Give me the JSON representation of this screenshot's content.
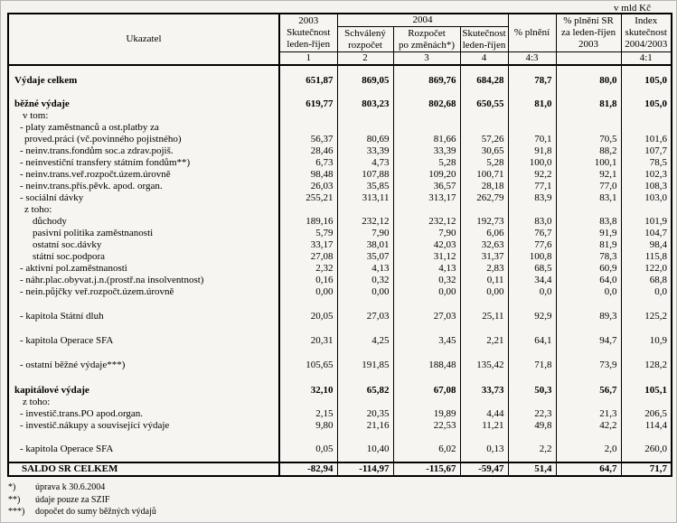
{
  "unit_label": "v mld Kč",
  "header": {
    "indicator": "Ukazatel",
    "col_2003": {
      "year": "2003",
      "line2": "Skutečnost",
      "line3": "leden-říjen",
      "num": "1"
    },
    "group_2004": {
      "year": "2004",
      "sub": [
        {
          "line1": "Schválený",
          "line2": "rozpočet",
          "num": "2"
        },
        {
          "line1": "Rozpočet",
          "line2": "po změnách*)",
          "num": "3"
        },
        {
          "line1": "Skutečnost",
          "line2": "leden-říjen",
          "num": "4"
        }
      ]
    },
    "col_plneni": {
      "label": "% plnění",
      "num": "4:3"
    },
    "col_plneni_sr": {
      "line1": "% plnění SR",
      "line2": "za leden-říjen",
      "line3": "2003",
      "num": ""
    },
    "col_index": {
      "line1": "Index",
      "line2": "skutečnost",
      "line3": "2004/2003",
      "num": "4:1"
    }
  },
  "table": {
    "rows": [
      {
        "type": "spacer",
        "h": 10
      },
      {
        "type": "row",
        "label": "Výdaje celkem",
        "bold": true,
        "indent": 0,
        "values": [
          "651,87",
          "869,05",
          "869,76",
          "684,28",
          "78,7",
          "80,0",
          "105,0"
        ]
      },
      {
        "type": "spacer",
        "h": 12
      },
      {
        "type": "row",
        "label": "běžné výdaje",
        "bold": true,
        "indent": 0,
        "values": [
          "619,77",
          "803,23",
          "802,68",
          "650,55",
          "81,0",
          "81,8",
          "105,0"
        ]
      },
      {
        "type": "row",
        "label": "v tom:",
        "indent": 2,
        "values": []
      },
      {
        "type": "row",
        "label": "- platy zaměstnanců a ost.platby za",
        "indent": 1,
        "values": []
      },
      {
        "type": "row",
        "label": "proved.práci (vč.povinného pojistného)",
        "indent": 3,
        "values": [
          "56,37",
          "80,69",
          "81,66",
          "57,26",
          "70,1",
          "70,5",
          "101,6"
        ]
      },
      {
        "type": "row",
        "label": "- neinv.trans.fondům soc.a zdrav.pojiš.",
        "indent": 1,
        "values": [
          "28,46",
          "33,39",
          "33,39",
          "30,65",
          "91,8",
          "88,2",
          "107,7"
        ]
      },
      {
        "type": "row",
        "label": "- neinvestiční transfery státním fondům**)",
        "indent": 1,
        "values": [
          "6,73",
          "4,73",
          "5,28",
          "5,28",
          "100,0",
          "100,1",
          "78,5"
        ]
      },
      {
        "type": "row",
        "label": "- neinv.trans.veř.rozpočt.územ.úrovně",
        "indent": 1,
        "values": [
          "98,48",
          "107,88",
          "109,20",
          "100,71",
          "92,2",
          "92,1",
          "102,3"
        ]
      },
      {
        "type": "row",
        "label": "- neinv.trans.přís.pěvk. apod. organ.",
        "indent": 1,
        "values": [
          "26,03",
          "35,85",
          "36,57",
          "28,18",
          "77,1",
          "77,0",
          "108,3"
        ]
      },
      {
        "type": "row",
        "label": "- sociální dávky",
        "indent": 1,
        "values": [
          "255,21",
          "313,11",
          "313,17",
          "262,79",
          "83,9",
          "83,1",
          "103,0"
        ]
      },
      {
        "type": "row",
        "label": "z toho:",
        "indent": 3,
        "values": []
      },
      {
        "type": "row",
        "label": "důchody",
        "indent": 4,
        "values": [
          "189,16",
          "232,12",
          "232,12",
          "192,73",
          "83,0",
          "83,8",
          "101,9"
        ]
      },
      {
        "type": "row",
        "label": "pasivní politika zaměstnanosti",
        "indent": 4,
        "values": [
          "5,79",
          "7,90",
          "7,90",
          "6,06",
          "76,7",
          "91,9",
          "104,7"
        ]
      },
      {
        "type": "row",
        "label": "ostatní soc.dávky",
        "indent": 4,
        "values": [
          "33,17",
          "38,01",
          "42,03",
          "32,63",
          "77,6",
          "81,9",
          "98,4"
        ]
      },
      {
        "type": "row",
        "label": "státní soc.podpora",
        "indent": 4,
        "values": [
          "27,08",
          "35,07",
          "31,12",
          "31,37",
          "100,8",
          "78,3",
          "115,8"
        ]
      },
      {
        "type": "row",
        "label": "- aktivní pol.zaměstnanosti",
        "indent": 1,
        "values": [
          "2,32",
          "4,13",
          "4,13",
          "2,83",
          "68,5",
          "60,9",
          "122,0"
        ]
      },
      {
        "type": "row",
        "label": "- náhr.plac.obyvat.j.n.(prostř.na insolventnost)",
        "indent": 1,
        "values": [
          "0,16",
          "0,32",
          "0,32",
          "0,11",
          "34,4",
          "64,0",
          "68,8"
        ]
      },
      {
        "type": "row",
        "label": "- nein.půjčky veř.rozpočt.územ.úrovně",
        "indent": 1,
        "values": [
          "0,00",
          "0,00",
          "0,00",
          "0,00",
          "0,0",
          "0,0",
          "0,0"
        ]
      },
      {
        "type": "spacer",
        "h": 14
      },
      {
        "type": "row",
        "label": "- kapitola Státní dluh",
        "indent": 1,
        "values": [
          "20,05",
          "27,03",
          "27,03",
          "25,11",
          "92,9",
          "89,3",
          "125,2"
        ]
      },
      {
        "type": "spacer",
        "h": 14
      },
      {
        "type": "row",
        "label": "- kapitola Operace SFA",
        "indent": 1,
        "values": [
          "20,31",
          "4,25",
          "3,45",
          "2,21",
          "64,1",
          "94,7",
          "10,9"
        ]
      },
      {
        "type": "spacer",
        "h": 14
      },
      {
        "type": "row",
        "label": "- ostatní běžné výdaje***)",
        "indent": 1,
        "values": [
          "105,65",
          "191,85",
          "188,48",
          "135,42",
          "71,8",
          "73,9",
          "128,2"
        ]
      },
      {
        "type": "spacer",
        "h": 14
      },
      {
        "type": "row",
        "label": "kapitálové výdaje",
        "bold": true,
        "indent": 0,
        "values": [
          "32,10",
          "65,82",
          "67,08",
          "33,73",
          "50,3",
          "56,7",
          "105,1"
        ]
      },
      {
        "type": "row",
        "label": "z toho:",
        "indent": 2,
        "values": []
      },
      {
        "type": "row",
        "label": "- investič.trans.PO apod.organ.",
        "indent": 1,
        "values": [
          "2,15",
          "20,35",
          "19,89",
          "4,44",
          "22,3",
          "21,3",
          "206,5"
        ]
      },
      {
        "type": "row",
        "label": "- investič.nákupy a související výdaje",
        "indent": 1,
        "values": [
          "9,80",
          "21,16",
          "22,53",
          "11,21",
          "49,8",
          "42,2",
          "114,4"
        ]
      },
      {
        "type": "spacer",
        "h": 13
      },
      {
        "type": "row",
        "label": "- kapitola Operace SFA",
        "indent": 1,
        "values": [
          "0,05",
          "10,40",
          "6,02",
          "0,13",
          "2,2",
          "2,0",
          "260,0"
        ]
      },
      {
        "type": "spacer",
        "h": 8
      }
    ],
    "saldo": {
      "label": "SALDO SR CELKEM",
      "values": [
        "-82,94",
        "-114,97",
        "-115,67",
        "-59,47",
        "51,4",
        "64,7",
        "71,7"
      ]
    }
  },
  "footnotes": [
    {
      "marker": "*)",
      "text": "úprava k 30.6.2004"
    },
    {
      "marker": "**)",
      "text": "údaje pouze za SZIF"
    },
    {
      "marker": "***)",
      "text": "dopočet do sumy běžných výdajů"
    }
  ]
}
